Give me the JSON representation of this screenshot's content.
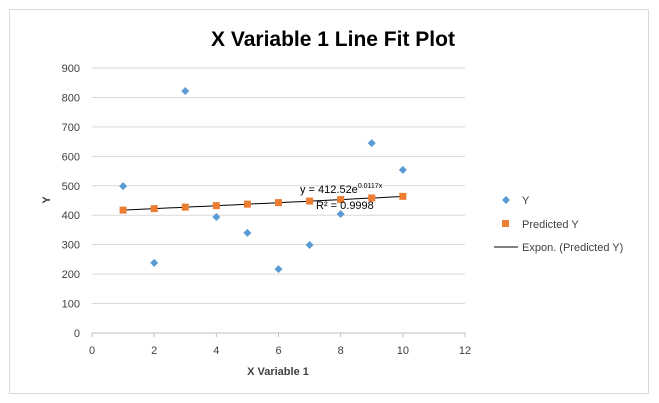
{
  "chart_data": {
    "type": "scatter",
    "title": "X Variable 1 Line Fit  Plot",
    "xlabel": "X Variable 1",
    "ylabel": "Y",
    "xlim": [
      0,
      12
    ],
    "ylim": [
      0,
      900
    ],
    "xticks": [
      0,
      2,
      4,
      6,
      8,
      10,
      12
    ],
    "yticks": [
      0,
      100,
      200,
      300,
      400,
      500,
      600,
      700,
      800,
      900
    ],
    "grid": "horizontal",
    "legend_position": "right",
    "x": [
      1,
      2,
      3,
      4,
      5,
      6,
      7,
      8,
      9,
      10
    ],
    "series": [
      {
        "name": "Y",
        "marker": "diamond",
        "color": "#5b9bd5",
        "values": [
          499,
          238,
          822,
          394,
          340,
          217,
          299,
          404,
          645,
          554
        ]
      },
      {
        "name": "Predicted Y",
        "marker": "square",
        "color": "#ed7d31",
        "values": [
          417.4,
          422.4,
          427.4,
          432.5,
          437.6,
          442.8,
          448.0,
          453.3,
          458.7,
          464.1
        ]
      }
    ],
    "trendline": {
      "name": "Expon. (Predicted Y)",
      "color": "#000000",
      "a": 412.52,
      "b": 0.0117,
      "equation_prefix": "y = 412.52e",
      "equation_exponent": "0.0117x",
      "r2_label": "R² = 0.9998"
    }
  }
}
